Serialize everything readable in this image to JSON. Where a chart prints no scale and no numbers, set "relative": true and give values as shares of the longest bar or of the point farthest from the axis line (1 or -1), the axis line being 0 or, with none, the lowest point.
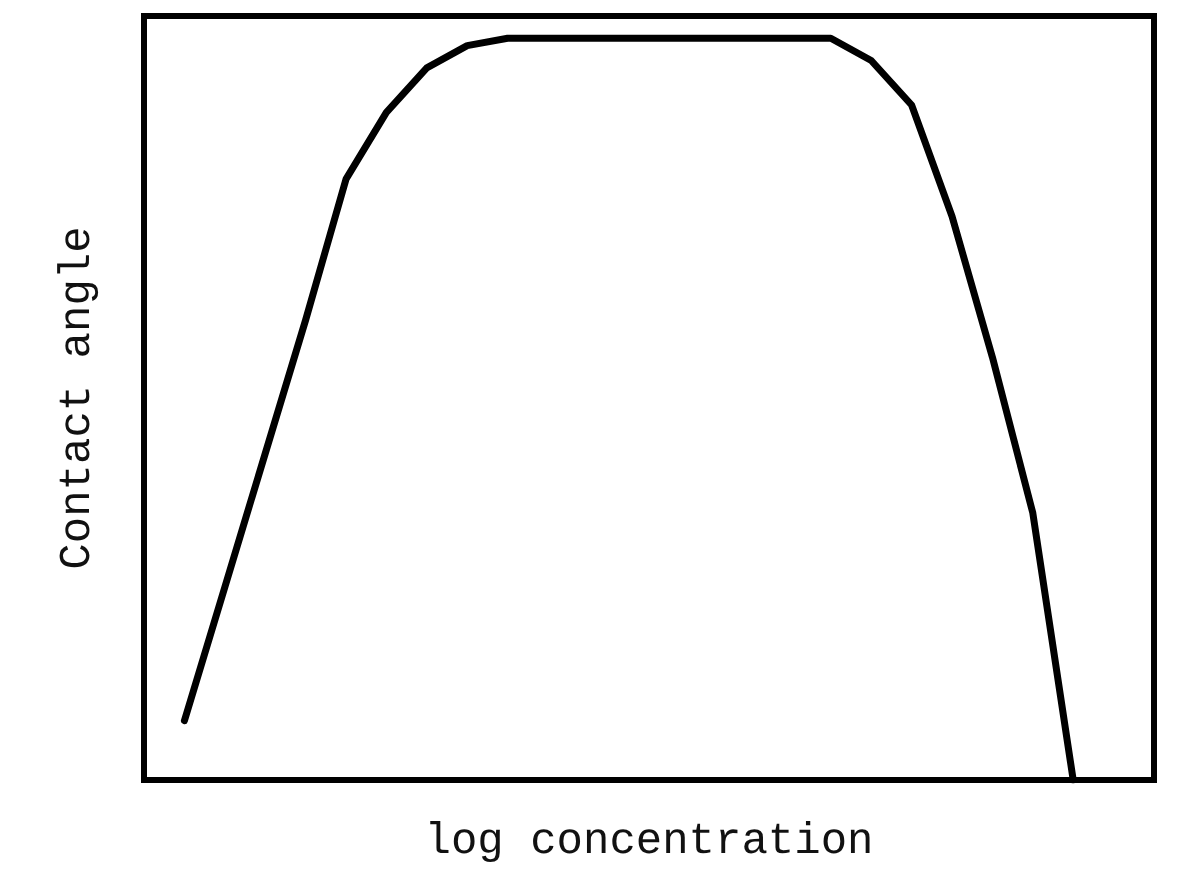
{
  "chart_data": {
    "type": "line",
    "xlabel": "log concentration",
    "ylabel": "Contact angle",
    "relative": true,
    "grid": false,
    "marker": "none",
    "line_style": "solid",
    "categories": [
      null,
      null,
      null,
      null,
      null,
      null,
      null,
      null,
      null,
      null,
      null,
      null,
      null,
      null,
      null,
      null,
      null,
      null,
      null,
      null,
      null,
      null,
      null,
      null,
      null,
      null
    ],
    "series": [
      {
        "color": "#000000",
        "values": [
          null,
          0.08,
          0.26,
          0.44,
          0.62,
          0.81,
          0.9,
          0.96,
          0.99,
          1,
          1,
          1,
          1,
          1,
          1,
          1,
          1,
          1,
          0.97,
          0.91,
          0.76,
          0.57,
          0.36,
          0,
          null,
          null
        ]
      }
    ]
  }
}
